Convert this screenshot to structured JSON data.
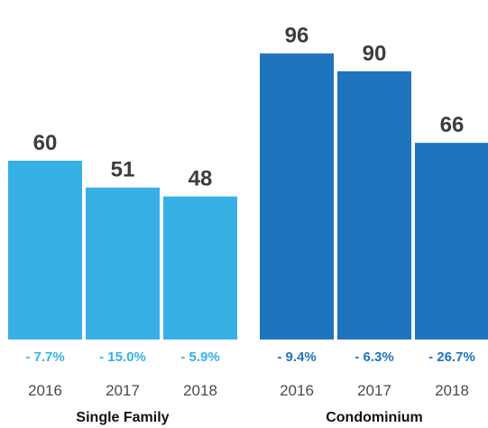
{
  "chart_data": {
    "type": "bar",
    "title": "",
    "xlabel": "",
    "ylabel": "",
    "ylim": [
      0,
      100
    ],
    "grid": false,
    "legend": "none",
    "categories": [
      "2016",
      "2017",
      "2018"
    ],
    "groups": [
      {
        "name": "Single Family",
        "color": "#37b0e6",
        "years": [
          "2016",
          "2017",
          "2018"
        ],
        "values": [
          60,
          51,
          48
        ],
        "changes": [
          "- 7.7%",
          "- 15.0%",
          "- 5.9%"
        ]
      },
      {
        "name": "Condominium",
        "color": "#1f74be",
        "years": [
          "2016",
          "2017",
          "2018"
        ],
        "values": [
          96,
          90,
          66
        ],
        "changes": [
          "- 9.4%",
          "- 6.3%",
          "- 26.7%"
        ]
      }
    ]
  }
}
